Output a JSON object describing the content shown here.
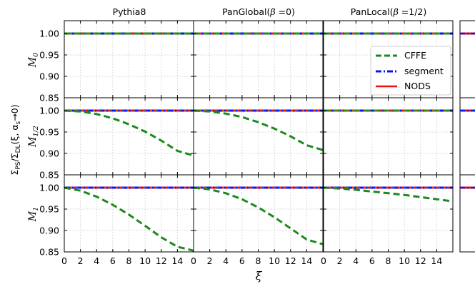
{
  "figure": {
    "columns": [
      {
        "label": "Pythia8"
      },
      {
        "label": "PanGlobal(",
        "beta_value": "0)"
      },
      {
        "label": "PanLocal(",
        "beta_value": "1/2)"
      }
    ],
    "rows": [
      {
        "symbol": "M",
        "subscript": "0"
      },
      {
        "symbol": "M",
        "subscript": "1/2"
      },
      {
        "symbol": "M",
        "subscript": "1"
      }
    ],
    "ylabel": {
      "sigma": "Σ",
      "ps": "PS",
      "slash": "/Σ",
      "dl": "DL",
      "args": "(ξ, α",
      "s": "s",
      "tail": "→0)"
    },
    "xlabel": "ξ",
    "beta_symbol": "β =",
    "legend": {
      "position": "inside top-right of row 1 / PanLocal panel",
      "entries": [
        {
          "label": "CFFE",
          "color": "#1a8a1a",
          "style": "dashed"
        },
        {
          "label": "segment",
          "color": "#0a16f0",
          "style": "dashdot"
        },
        {
          "label": "NODS",
          "color": "#ee1111",
          "style": "solid"
        }
      ]
    },
    "colors": {
      "cffe": "#1a8a1a",
      "segment": "#0a16f0",
      "nods": "#ee1111",
      "grid": "#cccccc"
    }
  },
  "chart_data": {
    "type": "line",
    "layout": "3x3 grid of panels, shared axes",
    "x": [
      0,
      2,
      4,
      6,
      8,
      10,
      12,
      14,
      16
    ],
    "xticks": [
      "0",
      "2",
      "4",
      "6",
      "8",
      "10",
      "12",
      "14"
    ],
    "xlim": [
      0,
      16
    ],
    "ylim": [
      0.85,
      1.03
    ],
    "yticks": [
      "0.85",
      "0.90",
      "0.95",
      "1.00"
    ],
    "grid": true,
    "xlabel": "ξ",
    "panels": [
      {
        "row": "M0",
        "column": "Pythia8",
        "series": [
          {
            "name": "CFFE",
            "values": [
              1,
              1,
              1,
              1,
              1,
              1,
              1,
              1,
              1
            ]
          },
          {
            "name": "segment",
            "values": [
              1,
              1,
              1,
              1,
              1,
              1,
              1,
              1,
              1
            ]
          },
          {
            "name": "NODS",
            "values": [
              1,
              1,
              1,
              1,
              1,
              1,
              1,
              1,
              1
            ]
          }
        ]
      },
      {
        "row": "M0",
        "column": "PanGlobal(β=0)",
        "series": [
          {
            "name": "CFFE",
            "values": [
              1,
              1,
              1,
              1,
              1,
              1,
              1,
              1,
              1
            ]
          },
          {
            "name": "segment",
            "values": [
              1,
              1,
              1,
              1,
              1,
              1,
              1,
              1,
              1
            ]
          },
          {
            "name": "NODS",
            "values": [
              1,
              1,
              1,
              1,
              1,
              1,
              1,
              1,
              1
            ]
          }
        ]
      },
      {
        "row": "M0",
        "column": "PanLocal(β=1/2)",
        "series": [
          {
            "name": "CFFE",
            "values": [
              1,
              1,
              1,
              1,
              1,
              1,
              1,
              1,
              1
            ]
          },
          {
            "name": "segment",
            "values": [
              1,
              1,
              1,
              1,
              1,
              1,
              1,
              1,
              1
            ]
          },
          {
            "name": "NODS",
            "values": [
              1,
              1,
              1,
              1,
              1,
              1,
              1,
              1,
              1
            ]
          }
        ]
      },
      {
        "row": "M1/2",
        "column": "Pythia8",
        "series": [
          {
            "name": "CFFE",
            "values": [
              1.0,
              0.998,
              0.992,
              0.982,
              0.968,
              0.951,
              0.93,
              0.906,
              0.895
            ]
          },
          {
            "name": "segment",
            "values": [
              1,
              1,
              1,
              1,
              1,
              1,
              1,
              1,
              1
            ]
          },
          {
            "name": "NODS",
            "values": [
              1,
              1,
              1,
              1,
              1,
              1,
              1,
              1,
              1
            ]
          }
        ]
      },
      {
        "row": "M1/2",
        "column": "PanGlobal(β=0)",
        "series": [
          {
            "name": "CFFE",
            "values": [
              1.0,
              0.998,
              0.993,
              0.985,
              0.973,
              0.958,
              0.94,
              0.919,
              0.908
            ]
          },
          {
            "name": "segment",
            "values": [
              1,
              1,
              1,
              1,
              1,
              1,
              1,
              1,
              1
            ]
          },
          {
            "name": "NODS",
            "values": [
              1,
              1,
              1,
              1,
              1,
              1,
              1,
              1,
              1
            ]
          }
        ]
      },
      {
        "row": "M1/2",
        "column": "PanLocal(β=1/2)",
        "series": [
          {
            "name": "CFFE",
            "values": [
              1,
              1,
              1,
              1,
              1,
              1,
              1,
              1,
              1
            ]
          },
          {
            "name": "segment",
            "values": [
              1,
              1,
              1,
              1,
              1,
              1,
              1,
              1,
              1
            ]
          },
          {
            "name": "NODS",
            "values": [
              1,
              1,
              1,
              1,
              1,
              1,
              1,
              1,
              1
            ]
          }
        ]
      },
      {
        "row": "M1",
        "column": "Pythia8",
        "series": [
          {
            "name": "CFFE",
            "values": [
              1.0,
              0.993,
              0.979,
              0.96,
              0.937,
              0.911,
              0.884,
              0.862,
              0.853
            ]
          },
          {
            "name": "segment",
            "values": [
              1,
              1,
              1,
              1,
              1,
              1,
              1,
              1,
              1
            ]
          },
          {
            "name": "NODS",
            "values": [
              1,
              1,
              1,
              1,
              1,
              1,
              1,
              1,
              1
            ]
          }
        ]
      },
      {
        "row": "M1",
        "column": "PanGlobal(β=0)",
        "series": [
          {
            "name": "CFFE",
            "values": [
              1.0,
              0.996,
              0.987,
              0.973,
              0.954,
              0.931,
              0.905,
              0.879,
              0.868
            ]
          },
          {
            "name": "segment",
            "values": [
              1,
              1,
              1,
              1,
              1,
              1,
              1,
              1,
              1
            ]
          },
          {
            "name": "NODS",
            "values": [
              1,
              1,
              1,
              1,
              1,
              1,
              1,
              1,
              1
            ]
          }
        ]
      },
      {
        "row": "M1",
        "column": "PanLocal(β=1/2)",
        "series": [
          {
            "name": "CFFE",
            "values": [
              1.0,
              0.998,
              0.995,
              0.991,
              0.987,
              0.983,
              0.978,
              0.973,
              0.968
            ]
          },
          {
            "name": "segment",
            "values": [
              1,
              1,
              1,
              1,
              1,
              1,
              1,
              1,
              1
            ]
          },
          {
            "name": "NODS",
            "values": [
              1,
              1,
              1,
              1,
              1,
              1,
              1,
              1,
              1
            ]
          }
        ]
      }
    ]
  }
}
